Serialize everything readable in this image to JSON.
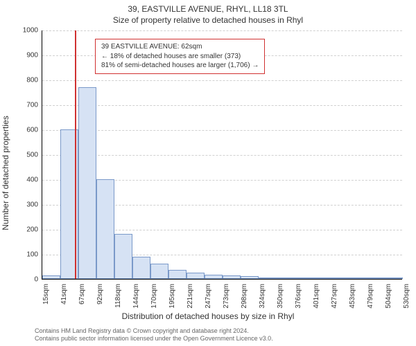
{
  "titles": {
    "line1": "39, EASTVILLE AVENUE, RHYL, LL18 3TL",
    "line2": "Size of property relative to detached houses in Rhyl"
  },
  "axes": {
    "ylabel": "Number of detached properties",
    "xlabel": "Distribution of detached houses by size in Rhyl"
  },
  "footer": {
    "line1": "Contains HM Land Registry data © Crown copyright and database right 2024.",
    "line2": "Contains public sector information licensed under the Open Government Licence v3.0."
  },
  "chart": {
    "type": "histogram",
    "ylim": [
      0,
      1000
    ],
    "ytick_step": 100,
    "yticks": [
      0,
      100,
      200,
      300,
      400,
      500,
      600,
      700,
      800,
      900,
      1000
    ],
    "xticks": [
      "15sqm",
      "41sqm",
      "67sqm",
      "92sqm",
      "118sqm",
      "144sqm",
      "170sqm",
      "195sqm",
      "221sqm",
      "247sqm",
      "273sqm",
      "298sqm",
      "324sqm",
      "350sqm",
      "376sqm",
      "401sqm",
      "427sqm",
      "453sqm",
      "479sqm",
      "504sqm",
      "530sqm"
    ],
    "bar_color": "#d6e2f4",
    "bar_border_color": "#7a99c9",
    "background_color": "#ffffff",
    "grid_color": "#d0d0d0",
    "marker_color": "#d03030",
    "marker_x_value": 62,
    "x_min": 15,
    "x_max": 530,
    "bars": [
      {
        "x": 15,
        "value": 15
      },
      {
        "x": 41,
        "value": 600
      },
      {
        "x": 67,
        "value": 770
      },
      {
        "x": 92,
        "value": 400
      },
      {
        "x": 118,
        "value": 180
      },
      {
        "x": 144,
        "value": 90
      },
      {
        "x": 170,
        "value": 60
      },
      {
        "x": 195,
        "value": 35
      },
      {
        "x": 221,
        "value": 25
      },
      {
        "x": 247,
        "value": 18
      },
      {
        "x": 273,
        "value": 14
      },
      {
        "x": 298,
        "value": 10
      },
      {
        "x": 324,
        "value": 4
      },
      {
        "x": 350,
        "value": 3
      },
      {
        "x": 376,
        "value": 3
      },
      {
        "x": 401,
        "value": 2
      },
      {
        "x": 427,
        "value": 1
      },
      {
        "x": 453,
        "value": 1
      },
      {
        "x": 479,
        "value": 0
      },
      {
        "x": 504,
        "value": 0
      }
    ],
    "annotation": {
      "line1": "39 EASTVILLE AVENUE: 62sqm",
      "line2": "← 18% of detached houses are smaller (373)",
      "line3": "81% of semi-detached houses are larger (1,706) →"
    }
  }
}
